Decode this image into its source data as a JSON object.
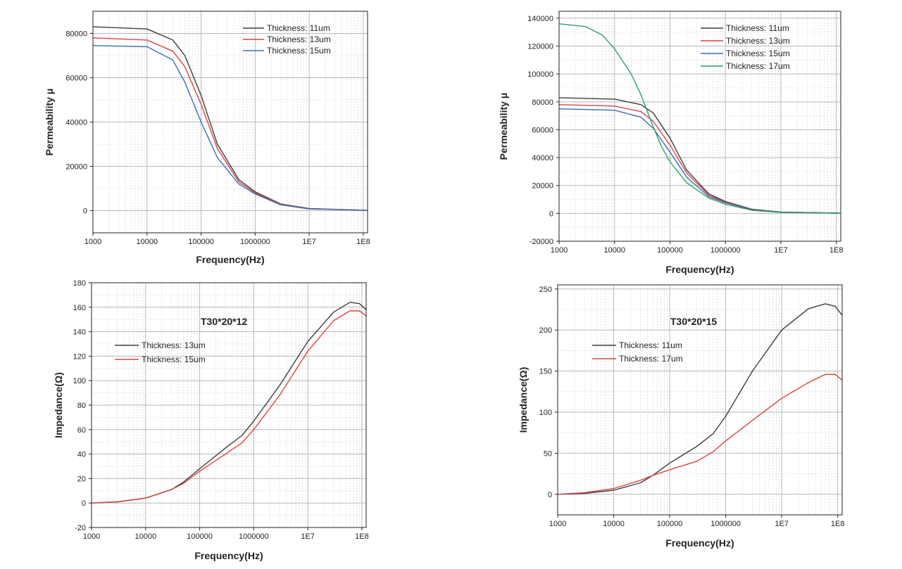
{
  "colors": {
    "t11": "#3d3d3d",
    "t13": "#d64545",
    "t15": "#3a6fb0",
    "t17": "#2e9e6a",
    "gray": "#3d3d3d",
    "red": "#d64545"
  },
  "chart_data": [
    {
      "type": "line",
      "id": "c1",
      "title": "",
      "xlabel": "Frequency(Hz)",
      "ylabel": "Permeability μ",
      "xscale": "log",
      "xlim": [
        1000,
        120000000
      ],
      "ylim": [
        -10000,
        90000
      ],
      "xticks": [
        {
          "v": 1000,
          "label": "1000"
        },
        {
          "v": 10000,
          "label": "10000"
        },
        {
          "v": 100000,
          "label": "100000"
        },
        {
          "v": 1000000,
          "label": "1000000"
        },
        {
          "v": 10000000,
          "label": "1E7"
        },
        {
          "v": 100000000,
          "label": "1E8"
        }
      ],
      "yticks": [
        {
          "v": 0,
          "label": "0"
        },
        {
          "v": 20000,
          "label": "20000"
        },
        {
          "v": 40000,
          "label": "40000"
        },
        {
          "v": 60000,
          "label": "60000"
        },
        {
          "v": 80000,
          "label": "80000"
        }
      ],
      "grid": true,
      "legend_position": "top-right",
      "series": [
        {
          "name": "Thickness: 11um",
          "color_key": "t11",
          "x": [
            1000,
            10000,
            30000,
            50000,
            100000,
            200000,
            500000,
            1000000,
            3000000,
            10000000,
            100000000,
            120000000
          ],
          "y": [
            83000,
            82000,
            77000,
            70000,
            52000,
            30000,
            14000,
            8500,
            3000,
            1000,
            200,
            100
          ]
        },
        {
          "name": "Thickness: 13um",
          "color_key": "t13",
          "x": [
            1000,
            10000,
            30000,
            50000,
            100000,
            200000,
            500000,
            1000000,
            3000000,
            10000000,
            100000000,
            120000000
          ],
          "y": [
            78000,
            77000,
            72000,
            65000,
            48000,
            28000,
            13000,
            8000,
            2800,
            900,
            200,
            100
          ]
        },
        {
          "name": "Thickness: 15um",
          "color_key": "t15",
          "x": [
            1000,
            10000,
            30000,
            50000,
            100000,
            200000,
            500000,
            1000000,
            3000000,
            10000000,
            100000000,
            120000000
          ],
          "y": [
            74500,
            74000,
            68000,
            58000,
            40000,
            24000,
            12000,
            7500,
            2600,
            800,
            200,
            100
          ]
        }
      ]
    },
    {
      "type": "line",
      "id": "c2",
      "title": "",
      "xlabel": "Frequency(Hz)",
      "ylabel": "Permeability μ",
      "xscale": "log",
      "xlim": [
        1000,
        120000000
      ],
      "ylim": [
        -20000,
        145000
      ],
      "xticks": [
        {
          "v": 1000,
          "label": "1000"
        },
        {
          "v": 10000,
          "label": "10000"
        },
        {
          "v": 100000,
          "label": "100000"
        },
        {
          "v": 1000000,
          "label": "1000000"
        },
        {
          "v": 10000000,
          "label": "1E7"
        },
        {
          "v": 100000000,
          "label": "1E8"
        }
      ],
      "yticks": [
        {
          "v": -20000,
          "label": "-20000"
        },
        {
          "v": 0,
          "label": "0"
        },
        {
          "v": 20000,
          "label": "20000"
        },
        {
          "v": 40000,
          "label": "40000"
        },
        {
          "v": 60000,
          "label": "60000"
        },
        {
          "v": 80000,
          "label": "80000"
        },
        {
          "v": 100000,
          "label": "100000"
        },
        {
          "v": 120000,
          "label": "120000"
        },
        {
          "v": 140000,
          "label": "140000"
        }
      ],
      "grid": true,
      "legend_position": "top-right",
      "series": [
        {
          "name": "Thickness: 11um",
          "color_key": "t11",
          "x": [
            1000,
            10000,
            30000,
            50000,
            100000,
            200000,
            500000,
            1000000,
            3000000,
            10000000,
            100000000,
            120000000
          ],
          "y": [
            83000,
            82000,
            78000,
            72000,
            54000,
            31000,
            14000,
            8500,
            3000,
            1000,
            200,
            100
          ]
        },
        {
          "name": "Thickness: 13um",
          "color_key": "t13",
          "x": [
            1000,
            10000,
            30000,
            50000,
            100000,
            200000,
            500000,
            1000000,
            3000000,
            10000000,
            100000000,
            120000000
          ],
          "y": [
            78000,
            77000,
            73000,
            66000,
            49000,
            29000,
            13000,
            8000,
            2800,
            900,
            200,
            100
          ]
        },
        {
          "name": "Thickness: 15um",
          "color_key": "t15",
          "x": [
            1000,
            10000,
            30000,
            50000,
            100000,
            200000,
            500000,
            1000000,
            3000000,
            10000000,
            100000000,
            120000000
          ],
          "y": [
            75000,
            74000,
            69000,
            61000,
            44000,
            26000,
            12000,
            7500,
            2600,
            800,
            200,
            100
          ]
        },
        {
          "name": "Thickness: 17um",
          "color_key": "t17",
          "x": [
            1000,
            3000,
            6000,
            10000,
            20000,
            30000,
            50000,
            70000,
            100000,
            200000,
            500000,
            1000000,
            3000000,
            10000000,
            100000000,
            120000000
          ],
          "y": [
            136000,
            134000,
            128000,
            118000,
            100000,
            85000,
            62000,
            48000,
            37000,
            22000,
            11000,
            6500,
            2200,
            700,
            150,
            100
          ]
        }
      ]
    },
    {
      "type": "line",
      "id": "c3",
      "title": "",
      "annotation": "T30*20*12",
      "xlabel": "Frequency(Hz)",
      "ylabel": "Impedance(Ω)",
      "xscale": "log",
      "xlim": [
        1000,
        120000000
      ],
      "ylim": [
        -20,
        180
      ],
      "xticks": [
        {
          "v": 1000,
          "label": "1000"
        },
        {
          "v": 10000,
          "label": "10000"
        },
        {
          "v": 100000,
          "label": "100000"
        },
        {
          "v": 1000000,
          "label": "1000000"
        },
        {
          "v": 10000000,
          "label": "1E7"
        },
        {
          "v": 100000000,
          "label": "1E8"
        }
      ],
      "yticks": [
        {
          "v": -20,
          "label": "-20"
        },
        {
          "v": 0,
          "label": "0"
        },
        {
          "v": 20,
          "label": "20"
        },
        {
          "v": 40,
          "label": "40"
        },
        {
          "v": 60,
          "label": "60"
        },
        {
          "v": 80,
          "label": "80"
        },
        {
          "v": 100,
          "label": "100"
        },
        {
          "v": 120,
          "label": "120"
        },
        {
          "v": 140,
          "label": "140"
        },
        {
          "v": 160,
          "label": "160"
        },
        {
          "v": 180,
          "label": "180"
        }
      ],
      "grid": true,
      "legend_position": "upper-left",
      "series": [
        {
          "name": "Thickness: 13um",
          "color_key": "gray",
          "x": [
            1000,
            3000,
            10000,
            30000,
            50000,
            100000,
            300000,
            600000,
            1000000,
            3000000,
            10000000,
            30000000,
            60000000,
            90000000,
            120000000
          ],
          "y": [
            0,
            1,
            4,
            11,
            17,
            28,
            45,
            55,
            67,
            96,
            132,
            156,
            164,
            163,
            158
          ]
        },
        {
          "name": "Thickness: 15um",
          "color_key": "red",
          "x": [
            1000,
            3000,
            10000,
            30000,
            50000,
            100000,
            300000,
            600000,
            1000000,
            3000000,
            10000000,
            30000000,
            60000000,
            90000000,
            120000000
          ],
          "y": [
            0,
            1,
            4,
            11,
            16,
            26,
            40,
            49,
            60,
            88,
            124,
            149,
            157,
            157,
            153
          ]
        }
      ]
    },
    {
      "type": "line",
      "id": "c4",
      "title": "",
      "annotation": "T30*20*15",
      "xlabel": "Frequency(Hz)",
      "ylabel": "Impedance(Ω)",
      "xscale": "log",
      "xlim": [
        1000,
        120000000
      ],
      "ylim": [
        -25,
        255
      ],
      "xticks": [
        {
          "v": 1000,
          "label": "1000"
        },
        {
          "v": 10000,
          "label": "10000"
        },
        {
          "v": 100000,
          "label": "100000"
        },
        {
          "v": 1000000,
          "label": "1000000"
        },
        {
          "v": 10000000,
          "label": "1E7"
        },
        {
          "v": 100000000,
          "label": "1E8"
        }
      ],
      "yticks": [
        {
          "v": 0,
          "label": "0"
        },
        {
          "v": 50,
          "label": "50"
        },
        {
          "v": 100,
          "label": "100"
        },
        {
          "v": 150,
          "label": "150"
        },
        {
          "v": 200,
          "label": "200"
        },
        {
          "v": 250,
          "label": "250"
        }
      ],
      "grid": true,
      "legend_position": "upper-left",
      "series": [
        {
          "name": "Thickness: 11um",
          "color_key": "gray",
          "x": [
            1000,
            3000,
            10000,
            30000,
            50000,
            100000,
            300000,
            600000,
            1000000,
            3000000,
            10000000,
            30000000,
            60000000,
            90000000,
            120000000
          ],
          "y": [
            0,
            1,
            5,
            14,
            23,
            38,
            58,
            74,
            95,
            150,
            200,
            226,
            232,
            229,
            218
          ]
        },
        {
          "name": "Thickness: 17um",
          "color_key": "red",
          "x": [
            1000,
            3000,
            10000,
            30000,
            50000,
            100000,
            300000,
            600000,
            1000000,
            3000000,
            10000000,
            30000000,
            60000000,
            90000000,
            120000000
          ],
          "y": [
            0,
            2,
            7,
            17,
            23,
            30,
            40,
            52,
            65,
            90,
            117,
            136,
            146,
            146,
            139
          ]
        }
      ]
    }
  ]
}
